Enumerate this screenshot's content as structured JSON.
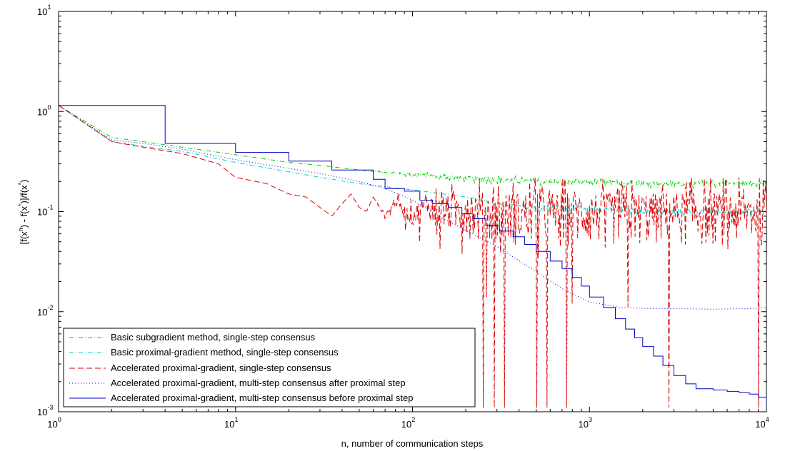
{
  "chart_data": {
    "type": "line",
    "xscale": "log",
    "yscale": "log",
    "xlim": [
      1,
      10000
    ],
    "ylim": [
      0.001,
      10
    ],
    "xlabel": "n, number of communication steps",
    "ylabel": "[f(x^n) - f(x^*)]/f(x^*)",
    "ylabel_parts": {
      "a": "[f(x",
      "b": "n",
      "c": ") - f(x",
      "d": "*",
      "e": ")]/f(x",
      "f": "*",
      "g": ")"
    },
    "x_ticks": [
      {
        "base": "10",
        "exp": "0"
      },
      {
        "base": "10",
        "exp": "1"
      },
      {
        "base": "10",
        "exp": "2"
      },
      {
        "base": "10",
        "exp": "3"
      },
      {
        "base": "10",
        "exp": "4"
      }
    ],
    "y_ticks": [
      {
        "base": "10",
        "exp": "-3"
      },
      {
        "base": "10",
        "exp": "-2"
      },
      {
        "base": "10",
        "exp": "-1"
      },
      {
        "base": "10",
        "exp": "0"
      },
      {
        "base": "10",
        "exp": "1"
      }
    ],
    "grid": false,
    "legend_position": "bottom-left",
    "series": [
      {
        "name": "Basic subgradient method, single-step consensus",
        "color": "#00cc00",
        "style": "dashdot",
        "x": [
          1,
          2,
          3,
          5,
          10,
          20,
          30,
          50,
          100,
          200,
          500,
          1000,
          2000,
          5000,
          10000
        ],
        "y": [
          1.15,
          0.55,
          0.5,
          0.44,
          0.37,
          0.31,
          0.29,
          0.26,
          0.235,
          0.215,
          0.2,
          0.195,
          0.19,
          0.19,
          0.195
        ],
        "noise_from_n": 40,
        "noise_amplitude": 0.05
      },
      {
        "name": "Basic proximal-gradient method, single-step consensus",
        "color": "#00cccc",
        "style": "dashdot",
        "x": [
          1,
          2,
          3,
          5,
          10,
          20,
          30,
          50,
          100,
          200,
          300,
          500,
          1000,
          2000,
          5000,
          10000
        ],
        "y": [
          1.15,
          0.5,
          0.45,
          0.4,
          0.31,
          0.25,
          0.22,
          0.19,
          0.165,
          0.14,
          0.12,
          0.11,
          0.105,
          0.1,
          0.1,
          0.1
        ],
        "noise_from_n": 200,
        "noise_amplitude": 0.06
      },
      {
        "name": "Accelerated proximal-gradient, single-step consensus",
        "color": "#dd0000",
        "style": "dashed",
        "x": [
          1,
          2,
          3,
          5,
          8,
          10,
          15,
          20,
          25,
          30,
          35,
          40,
          45,
          50,
          55,
          60,
          70,
          80,
          90,
          100,
          120,
          150,
          200,
          250,
          300,
          500,
          1000,
          2000,
          5000,
          10000
        ],
        "y": [
          1.15,
          0.5,
          0.44,
          0.38,
          0.3,
          0.22,
          0.19,
          0.15,
          0.14,
          0.11,
          0.09,
          0.12,
          0.15,
          0.11,
          0.1,
          0.14,
          0.09,
          0.13,
          0.1,
          0.09,
          0.12,
          0.1,
          0.11,
          0.1,
          0.1,
          0.1,
          0.1,
          0.1,
          0.1,
          0.1
        ],
        "noise_from_n": 60,
        "noise_amplitude": 0.55
      },
      {
        "name": "Accelerated proximal-gradient, multi-step consensus after proximal step",
        "color": "#0000cc",
        "style": "dotted",
        "x": [
          1,
          2,
          3,
          5,
          10,
          20,
          30,
          50,
          70,
          100,
          150,
          200,
          300,
          500,
          700,
          1000,
          1500,
          2000,
          3000,
          5000,
          8000,
          10000
        ],
        "y": [
          1.15,
          0.52,
          0.48,
          0.42,
          0.33,
          0.27,
          0.24,
          0.2,
          0.17,
          0.13,
          0.085,
          0.065,
          0.045,
          0.025,
          0.017,
          0.0125,
          0.011,
          0.0108,
          0.0107,
          0.0106,
          0.0107,
          0.011
        ],
        "noise_from_n": 0,
        "noise_amplitude": 0
      },
      {
        "name": "Accelerated proximal-gradient, multi-step consensus before proximal step",
        "color": "#0000cc",
        "style": "solid",
        "step": true,
        "x": [
          1,
          3,
          4,
          6,
          7,
          10,
          11,
          20,
          22,
          35,
          40,
          60,
          70,
          90,
          110,
          130,
          160,
          190,
          220,
          260,
          310,
          370,
          430,
          500,
          600,
          700,
          800,
          900,
          1000,
          1200,
          1400,
          1600,
          1800,
          2000,
          2300,
          2600,
          3000,
          3500,
          4000,
          5000,
          6000,
          7000,
          8000,
          9000,
          10000
        ],
        "y": [
          1.15,
          1.15,
          0.48,
          0.48,
          0.48,
          0.39,
          0.39,
          0.32,
          0.32,
          0.26,
          0.26,
          0.21,
          0.17,
          0.16,
          0.13,
          0.12,
          0.11,
          0.095,
          0.085,
          0.072,
          0.064,
          0.056,
          0.047,
          0.04,
          0.032,
          0.027,
          0.022,
          0.018,
          0.014,
          0.011,
          0.0085,
          0.0067,
          0.0055,
          0.0045,
          0.0036,
          0.0029,
          0.0023,
          0.0019,
          0.0017,
          0.00165,
          0.0016,
          0.00155,
          0.0015,
          0.0014,
          0.00125
        ],
        "noise_from_n": 0,
        "noise_amplitude": 0
      }
    ]
  }
}
